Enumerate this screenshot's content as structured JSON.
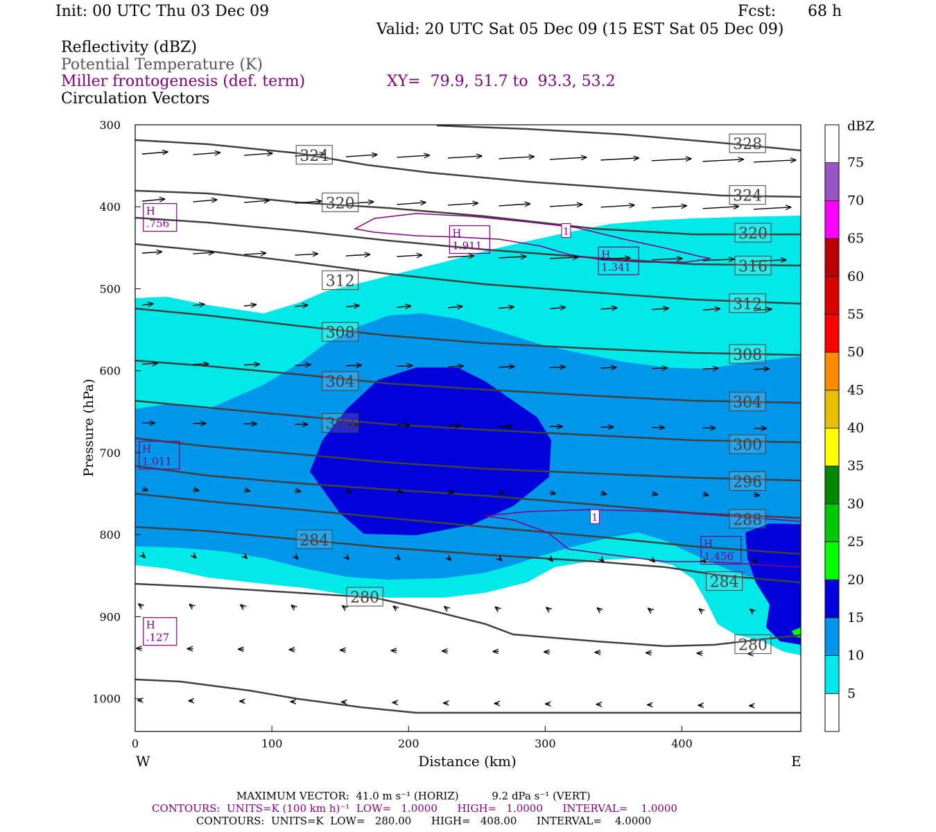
{
  "header": {
    "init": "Init: 00 UTC Thu 03 Dec 09",
    "fcst_label": "Fcst:",
    "fcst_value": "68 h",
    "valid": "Valid: 20 UTC Sat 05 Dec 09 (15 EST Sat 05 Dec 09)",
    "field1": "Reflectivity (dBZ)",
    "field2": "Potential Temperature (K)",
    "field3": "Miller frontogenesis (def. term)",
    "xy": "XY=  79.9, 51.7 to  93.3, 53.2",
    "field4": "Circulation Vectors"
  },
  "chart_data": {
    "type": "cross-section",
    "xlabel": "Distance (km)",
    "ylabel": "Pressure (hPa)",
    "xlim": [
      0,
      487
    ],
    "ylim": [
      1040,
      300
    ],
    "x_ticks": [
      "0",
      "100",
      "200",
      "300",
      "400"
    ],
    "y_ticks": [
      "300",
      "400",
      "500",
      "600",
      "700",
      "800",
      "900",
      "1000"
    ],
    "x_end_labels": {
      "left": "W",
      "right": "E"
    },
    "colorbar": {
      "unit": "dBZ",
      "levels": [
        "5",
        "10",
        "15",
        "20",
        "25",
        "30",
        "35",
        "40",
        "45",
        "50",
        "55",
        "60",
        "65",
        "70",
        "75"
      ],
      "colors": [
        "#00e8e8",
        "#0096ea",
        "#0000d8",
        "#00ff00",
        "#00c800",
        "#008800",
        "#ffff00",
        "#e8c000",
        "#ff8c00",
        "#ff0000",
        "#d80000",
        "#b80000",
        "#ff00ff",
        "#9955c8",
        "#ffffff"
      ]
    },
    "theta_labels": [
      {
        "text": "324",
        "x": 131,
        "p": 337
      },
      {
        "text": "320",
        "x": 150,
        "p": 395
      },
      {
        "text": "312",
        "x": 150,
        "p": 490
      },
      {
        "text": "308",
        "x": 150,
        "p": 553
      },
      {
        "text": "304",
        "x": 150,
        "p": 613
      },
      {
        "text": "300",
        "x": 150,
        "p": 664
      },
      {
        "text": "284",
        "x": 131,
        "p": 806
      },
      {
        "text": "280",
        "x": 168,
        "p": 876
      },
      {
        "text": "328",
        "x": 448,
        "p": 323
      },
      {
        "text": "324",
        "x": 448,
        "p": 386
      },
      {
        "text": "320",
        "x": 452,
        "p": 432
      },
      {
        "text": "316",
        "x": 452,
        "p": 472
      },
      {
        "text": "312",
        "x": 448,
        "p": 518
      },
      {
        "text": "308",
        "x": 448,
        "p": 580
      },
      {
        "text": "304",
        "x": 448,
        "p": 638
      },
      {
        "text": "300",
        "x": 448,
        "p": 690
      },
      {
        "text": "296",
        "x": 448,
        "p": 735
      },
      {
        "text": "288",
        "x": 448,
        "p": 781
      },
      {
        "text": "284",
        "x": 431,
        "p": 857
      },
      {
        "text": "280",
        "x": 452,
        "p": 934
      }
    ],
    "frontogenesis_labels": [
      {
        "text": "H",
        "value": ".756",
        "x": 8,
        "p": 413
      },
      {
        "text": "H",
        "value": "1.911",
        "x": 232,
        "p": 440
      },
      {
        "text": "H",
        "value": "1.341",
        "x": 341,
        "p": 466
      },
      {
        "text": "H",
        "value": "1.011",
        "x": 5,
        "p": 703
      },
      {
        "text": "H",
        "value": "1.456",
        "x": 416,
        "p": 819
      },
      {
        "text": "H",
        "value": ".127",
        "x": 8,
        "p": 918
      },
      {
        "text": "1",
        "value": "",
        "x": 315,
        "p": 429
      },
      {
        "text": "1",
        "value": "",
        "x": 336,
        "p": 778
      }
    ]
  },
  "footer": {
    "max_vector": "MAXIMUM VECTOR:  41.0 m s⁻¹ (HORIZ)          9.2 dPa s⁻¹ (VERT)",
    "contours1": "CONTOURS:  UNITS=K (100 km h)⁻¹  LOW=   1.0000      HIGH=   1.0000      INTERVAL=    1.0000",
    "contours2": "CONTOURS:  UNITS=K  LOW=   280.00      HIGH=   408.00      INTERVAL=    4.0000"
  }
}
